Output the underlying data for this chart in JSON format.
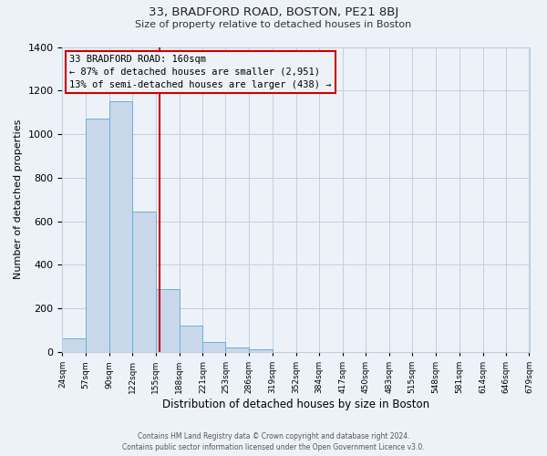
{
  "title": "33, BRADFORD ROAD, BOSTON, PE21 8BJ",
  "subtitle": "Size of property relative to detached houses in Boston",
  "xlabel": "Distribution of detached houses by size in Boston",
  "ylabel": "Number of detached properties",
  "bar_color": "#c8d8ea",
  "bar_edge_color": "#6baed6",
  "grid_color": "#c0cfe0",
  "background_color": "#edf2f8",
  "vline_x": 160,
  "vline_color": "#cc0000",
  "annotation_title": "33 BRADFORD ROAD: 160sqm",
  "annotation_line1": "← 87% of detached houses are smaller (2,951)",
  "annotation_line2": "13% of semi-detached houses are larger (438) →",
  "annotation_box_color": "#cc0000",
  "bin_edges": [
    24,
    57,
    90,
    122,
    155,
    188,
    221,
    253,
    286,
    319,
    352,
    384,
    417,
    450,
    483,
    515,
    548,
    581,
    614,
    646,
    679
  ],
  "bar_heights": [
    65,
    1070,
    1150,
    645,
    290,
    120,
    48,
    22,
    12,
    0,
    0,
    0,
    0,
    0,
    0,
    0,
    0,
    0,
    0,
    0
  ],
  "ylim": [
    0,
    1400
  ],
  "yticks": [
    0,
    200,
    400,
    600,
    800,
    1000,
    1200,
    1400
  ],
  "footer_line1": "Contains HM Land Registry data © Crown copyright and database right 2024.",
  "footer_line2": "Contains public sector information licensed under the Open Government Licence v3.0."
}
